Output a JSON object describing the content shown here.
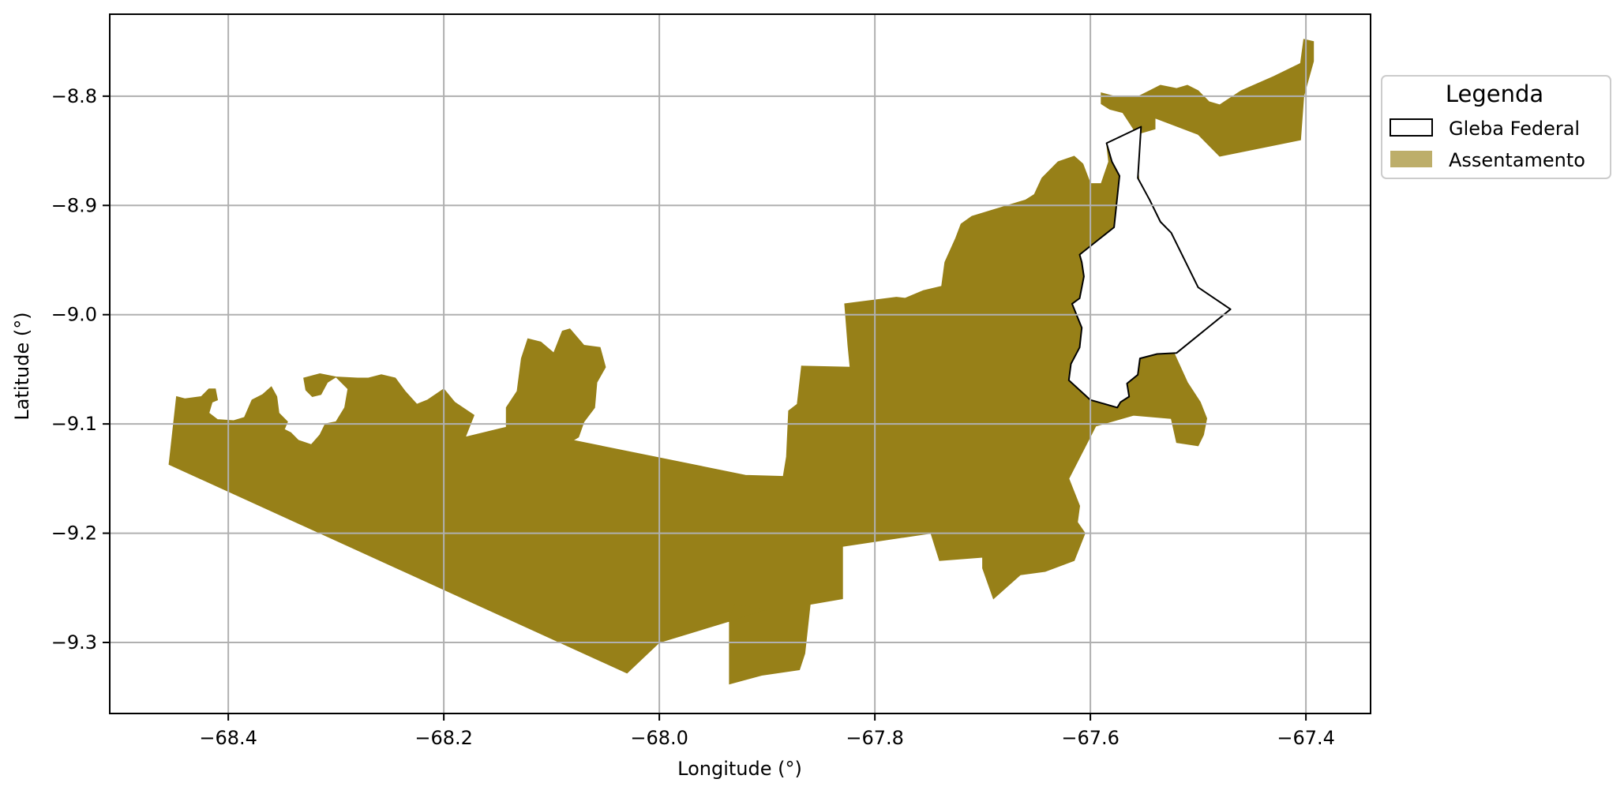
{
  "chart_data": {
    "type": "map",
    "title": "",
    "xlabel": "Longitude (°)",
    "ylabel": "Latitude (°)",
    "xlim": [
      -68.51,
      -67.34
    ],
    "ylim": [
      -9.365,
      -8.725
    ],
    "grid": true,
    "x_ticks": [
      {
        "value": -68.4,
        "label": "−68.4"
      },
      {
        "value": -68.2,
        "label": "−68.2"
      },
      {
        "value": -68.0,
        "label": "−68.0"
      },
      {
        "value": -67.8,
        "label": "−67.8"
      },
      {
        "value": -67.6,
        "label": "−67.6"
      },
      {
        "value": -67.4,
        "label": "−67.4"
      }
    ],
    "y_ticks": [
      {
        "value": -8.8,
        "label": "−8.8"
      },
      {
        "value": -8.9,
        "label": "−8.9"
      },
      {
        "value": -9.0,
        "label": "−9.0"
      },
      {
        "value": -9.1,
        "label": "−9.1"
      },
      {
        "value": -9.2,
        "label": "−9.2"
      },
      {
        "value": -9.3,
        "label": "−9.3"
      }
    ],
    "legend": {
      "title": "Legenda",
      "placement": "outside-right-top",
      "entries": [
        {
          "label": "Gleba Federal",
          "style": "outline",
          "color": "#000000"
        },
        {
          "label": "Assentamento",
          "style": "fill",
          "color": "#bdae6a"
        }
      ]
    },
    "layers": [
      {
        "name": "Assentamento",
        "color": "#978018",
        "polygons": [
          [
            [
              -68.455,
              -9.137
            ],
            [
              -68.448,
              -9.075
            ],
            [
              -68.44,
              -9.077
            ],
            [
              -68.425,
              -9.075
            ],
            [
              -68.418,
              -9.068
            ],
            [
              -68.412,
              -9.068
            ],
            [
              -68.41,
              -9.078
            ],
            [
              -68.415,
              -9.08
            ],
            [
              -68.418,
              -9.09
            ],
            [
              -68.41,
              -9.096
            ],
            [
              -68.395,
              -9.097
            ],
            [
              -68.385,
              -9.094
            ],
            [
              -68.378,
              -9.078
            ],
            [
              -68.368,
              -9.073
            ],
            [
              -68.36,
              -9.066
            ],
            [
              -68.355,
              -9.075
            ],
            [
              -68.353,
              -9.09
            ],
            [
              -68.345,
              -9.098
            ],
            [
              -68.348,
              -9.105
            ],
            [
              -68.342,
              -9.108
            ],
            [
              -68.335,
              -9.115
            ],
            [
              -68.323,
              -9.119
            ],
            [
              -68.315,
              -9.11
            ],
            [
              -68.31,
              -9.1
            ],
            [
              -68.3,
              -9.098
            ],
            [
              -68.292,
              -9.085
            ],
            [
              -68.289,
              -9.068
            ],
            [
              -68.3,
              -9.057
            ],
            [
              -68.308,
              -9.062
            ],
            [
              -68.314,
              -9.073
            ],
            [
              -68.322,
              -9.075
            ],
            [
              -68.328,
              -9.069
            ],
            [
              -68.33,
              -9.058
            ],
            [
              -68.315,
              -9.054
            ],
            [
              -68.3,
              -9.057
            ],
            [
              -68.28,
              -9.058
            ],
            [
              -68.27,
              -9.058
            ],
            [
              -68.258,
              -9.055
            ],
            [
              -68.245,
              -9.058
            ],
            [
              -68.236,
              -9.07
            ],
            [
              -68.225,
              -9.082
            ],
            [
              -68.215,
              -9.078
            ],
            [
              -68.2,
              -9.068
            ],
            [
              -68.19,
              -9.08
            ],
            [
              -68.172,
              -9.092
            ],
            [
              -68.18,
              -9.112
            ],
            [
              -68.142,
              -9.103
            ],
            [
              -68.142,
              -9.085
            ],
            [
              -68.132,
              -9.07
            ],
            [
              -68.128,
              -9.04
            ],
            [
              -68.122,
              -9.022
            ],
            [
              -68.11,
              -9.025
            ],
            [
              -68.098,
              -9.035
            ],
            [
              -68.09,
              -9.015
            ],
            [
              -68.083,
              -9.013
            ],
            [
              -68.07,
              -9.028
            ],
            [
              -68.055,
              -9.03
            ],
            [
              -68.05,
              -9.048
            ],
            [
              -68.058,
              -9.062
            ],
            [
              -68.06,
              -9.085
            ],
            [
              -68.07,
              -9.098
            ],
            [
              -68.075,
              -9.112
            ],
            [
              -68.08,
              -9.115
            ],
            [
              -67.92,
              -9.147
            ],
            [
              -67.885,
              -9.148
            ],
            [
              -67.882,
              -9.13
            ],
            [
              -67.88,
              -9.088
            ],
            [
              -67.872,
              -9.082
            ],
            [
              -67.868,
              -9.047
            ],
            [
              -67.823,
              -9.048
            ],
            [
              -67.825,
              -9.028
            ],
            [
              -67.828,
              -8.99
            ],
            [
              -67.78,
              -8.984
            ],
            [
              -67.772,
              -8.985
            ],
            [
              -67.755,
              -8.978
            ],
            [
              -67.738,
              -8.974
            ],
            [
              -67.735,
              -8.952
            ],
            [
              -67.725,
              -8.93
            ],
            [
              -67.72,
              -8.917
            ],
            [
              -67.71,
              -8.91
            ],
            [
              -67.66,
              -8.895
            ],
            [
              -67.652,
              -8.89
            ],
            [
              -67.645,
              -8.875
            ],
            [
              -67.63,
              -8.86
            ],
            [
              -67.615,
              -8.855
            ],
            [
              -67.607,
              -8.862
            ],
            [
              -67.6,
              -8.88
            ],
            [
              -67.59,
              -8.88
            ],
            [
              -67.583,
              -8.86
            ],
            [
              -67.585,
              -8.843
            ],
            [
              -67.575,
              -8.843
            ],
            [
              -67.574,
              -8.858
            ],
            [
              -67.573,
              -8.873
            ],
            [
              -67.578,
              -8.92
            ],
            [
              -67.61,
              -8.945
            ],
            [
              -67.606,
              -8.953
            ],
            [
              -67.604,
              -8.97
            ],
            [
              -67.61,
              -8.985
            ],
            [
              -67.603,
              -8.99
            ],
            [
              -67.605,
              -9.01
            ],
            [
              -67.603,
              -9.03
            ],
            [
              -67.607,
              -9.045
            ],
            [
              -67.604,
              -9.06
            ],
            [
              -67.6,
              -9.078
            ],
            [
              -67.58,
              -9.083
            ],
            [
              -67.573,
              -9.08
            ],
            [
              -67.566,
              -9.075
            ],
            [
              -67.565,
              -9.062
            ],
            [
              -67.558,
              -9.055
            ],
            [
              -67.554,
              -9.04
            ],
            [
              -67.538,
              -9.036
            ],
            [
              -67.522,
              -9.036
            ],
            [
              -67.51,
              -9.062
            ],
            [
              -67.498,
              -9.08
            ],
            [
              -67.492,
              -9.095
            ],
            [
              -67.495,
              -9.11
            ],
            [
              -67.5,
              -9.12
            ],
            [
              -67.52,
              -9.117
            ],
            [
              -67.525,
              -9.095
            ],
            [
              -67.56,
              -9.092
            ],
            [
              -67.595,
              -9.102
            ],
            [
              -67.62,
              -9.15
            ],
            [
              -67.61,
              -9.175
            ],
            [
              -67.612,
              -9.19
            ],
            [
              -67.605,
              -9.2
            ],
            [
              -67.615,
              -9.225
            ],
            [
              -67.642,
              -9.235
            ],
            [
              -67.665,
              -9.238
            ],
            [
              -67.69,
              -9.26
            ],
            [
              -67.7,
              -9.232
            ],
            [
              -67.7,
              -9.222
            ],
            [
              -67.74,
              -9.225
            ],
            [
              -67.748,
              -9.2
            ],
            [
              -67.83,
              -9.212
            ],
            [
              -67.83,
              -9.26
            ],
            [
              -67.86,
              -9.265
            ],
            [
              -67.865,
              -9.31
            ],
            [
              -67.87,
              -9.325
            ],
            [
              -67.905,
              -9.33
            ],
            [
              -67.935,
              -9.338
            ],
            [
              -67.935,
              -9.28
            ],
            [
              -67.93,
              -9.265
            ],
            [
              -67.9,
              -9.27
            ],
            [
              -68.0,
              -9.3
            ],
            [
              -68.03,
              -9.328
            ],
            [
              -68.455,
              -9.137
            ]
          ],
          [
            [
              -67.555,
              -8.875
            ],
            [
              -67.578,
              -8.86
            ],
            [
              -67.575,
              -8.84
            ],
            [
              -67.54,
              -8.83
            ],
            [
              -67.54,
              -8.82
            ],
            [
              -67.5,
              -8.835
            ],
            [
              -67.48,
              -8.855
            ],
            [
              -67.43,
              -8.845
            ],
            [
              -67.405,
              -8.84
            ],
            [
              -67.402,
              -8.8
            ],
            [
              -67.393,
              -8.768
            ],
            [
              -67.393,
              -8.75
            ],
            [
              -67.402,
              -8.748
            ],
            [
              -67.405,
              -8.77
            ],
            [
              -67.43,
              -8.782
            ],
            [
              -67.46,
              -8.795
            ],
            [
              -67.48,
              -8.808
            ],
            [
              -67.49,
              -8.805
            ],
            [
              -67.5,
              -8.795
            ],
            [
              -67.51,
              -8.79
            ],
            [
              -67.52,
              -8.793
            ],
            [
              -67.535,
              -8.79
            ],
            [
              -67.545,
              -8.795
            ],
            [
              -67.555,
              -8.8
            ],
            [
              -67.568,
              -8.8
            ],
            [
              -67.578,
              -8.8
            ],
            [
              -67.59,
              -8.797
            ],
            [
              -67.59,
              -8.807
            ],
            [
              -67.582,
              -8.812
            ],
            [
              -67.57,
              -8.815
            ],
            [
              -67.56,
              -8.83
            ],
            [
              -67.555,
              -8.875
            ]
          ]
        ]
      },
      {
        "name": "Gleba Federal",
        "color": "#000000",
        "polygons": [
          [
            [
              -67.585,
              -8.843
            ],
            [
              -67.553,
              -8.828
            ],
            [
              -67.556,
              -8.875
            ],
            [
              -67.545,
              -8.895
            ],
            [
              -67.535,
              -8.915
            ],
            [
              -67.525,
              -8.925
            ],
            [
              -67.5,
              -8.975
            ],
            [
              -67.47,
              -8.995
            ],
            [
              -67.52,
              -9.035
            ],
            [
              -67.538,
              -9.036
            ],
            [
              -67.554,
              -9.04
            ],
            [
              -67.556,
              -9.055
            ],
            [
              -67.566,
              -9.063
            ],
            [
              -67.564,
              -9.075
            ],
            [
              -67.572,
              -9.08
            ],
            [
              -67.575,
              -9.085
            ],
            [
              -67.6,
              -9.078
            ],
            [
              -67.62,
              -9.06
            ],
            [
              -67.618,
              -9.045
            ],
            [
              -67.61,
              -9.03
            ],
            [
              -67.608,
              -9.012
            ],
            [
              -67.617,
              -8.99
            ],
            [
              -67.61,
              -8.985
            ],
            [
              -67.606,
              -8.965
            ],
            [
              -67.608,
              -8.952
            ],
            [
              -67.61,
              -8.945
            ],
            [
              -67.578,
              -8.92
            ],
            [
              -67.573,
              -8.873
            ],
            [
              -67.58,
              -8.86
            ],
            [
              -67.585,
              -8.843
            ]
          ]
        ]
      }
    ]
  }
}
